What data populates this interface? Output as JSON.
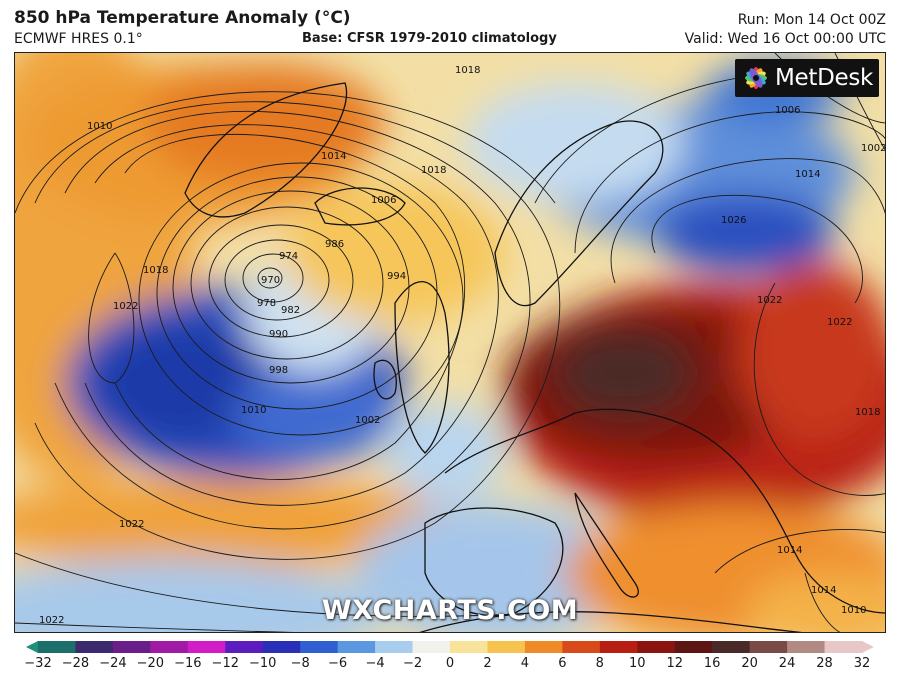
{
  "header": {
    "title": "850 hPa Temperature Anomaly (°C)",
    "model": "ECMWF HRES 0.1°",
    "base": "Base: CFSR 1979-2010 climatology",
    "run": "Run: Mon 14 Oct 00Z",
    "valid": "Valid: Wed 16 Oct 00:00 UTC"
  },
  "logo": {
    "text": "MetDesk",
    "icon": "metdesk-flower-icon"
  },
  "watermark": "WXCHARTS.COM",
  "colorbar": {
    "ticks": [
      "−32",
      "−28",
      "−24",
      "−20",
      "−16",
      "−12",
      "−10",
      "−8",
      "−6",
      "−4",
      "−2",
      "0",
      "2",
      "4",
      "6",
      "8",
      "10",
      "12",
      "16",
      "20",
      "24",
      "28",
      "32"
    ],
    "colors": [
      "#1f8f7a",
      "#1c6f6a",
      "#3b2a6e",
      "#6a1e8a",
      "#a11aa6",
      "#d21cc6",
      "#5b1dbf",
      "#2a2fb8",
      "#2f5fd1",
      "#5b98e0",
      "#a9cdee",
      "#f2f2ec",
      "#f7e39a",
      "#f6c34e",
      "#ef8a26",
      "#d94a1a",
      "#b71f12",
      "#8c1410",
      "#5e1614",
      "#4a2a28",
      "#7a4a44",
      "#b28a84",
      "#e8c7c9"
    ]
  },
  "map": {
    "isobar_labels": [
      "1010",
      "1010",
      "1014",
      "1018",
      "1022",
      "1022",
      "1022",
      "1018",
      "1014",
      "1006",
      "1002",
      "1026",
      "1022",
      "1018",
      "1014",
      "1010",
      "1006",
      "1002",
      "998",
      "994",
      "990",
      "986",
      "982",
      "978",
      "974",
      "970",
      "1022",
      "1014",
      "1018"
    ]
  }
}
